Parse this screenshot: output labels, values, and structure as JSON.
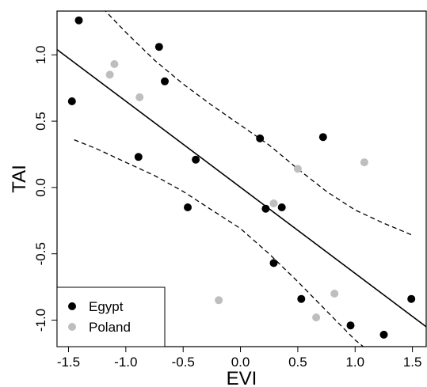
{
  "chart_data": {
    "type": "scatter",
    "title": "",
    "xlabel": "EVI",
    "ylabel": "TAI",
    "xlim": [
      -1.6,
      1.62
    ],
    "ylim": [
      -1.2,
      1.33
    ],
    "x_ticks": [
      -1.5,
      -1.0,
      -0.5,
      0.0,
      0.5,
      1.0,
      1.5
    ],
    "x_tick_labels": [
      "-1.5",
      "-1.0",
      "-0.5",
      "0.0",
      "0.5",
      "1.0",
      "1.5"
    ],
    "y_ticks": [
      -1.0,
      -0.5,
      0.0,
      0.5,
      1.0
    ],
    "y_tick_labels": [
      "-1.0",
      "-0.5",
      "0.0",
      "0.5",
      "1.0"
    ],
    "grid": false,
    "legend_position": "bottom-left",
    "series": [
      {
        "name": "Egypt",
        "color": "#000000",
        "points": [
          [
            -1.41,
            1.26
          ],
          [
            -1.47,
            0.65
          ],
          [
            -0.71,
            1.06
          ],
          [
            -0.66,
            0.8
          ],
          [
            -0.89,
            0.23
          ],
          [
            -0.39,
            0.21
          ],
          [
            -0.46,
            -0.15
          ],
          [
            0.17,
            0.37
          ],
          [
            0.22,
            -0.16
          ],
          [
            0.36,
            -0.15
          ],
          [
            0.29,
            -0.57
          ],
          [
            0.72,
            0.38
          ],
          [
            0.53,
            -0.84
          ],
          [
            0.96,
            -1.04
          ],
          [
            1.25,
            -1.11
          ],
          [
            1.49,
            -0.84
          ]
        ]
      },
      {
        "name": "Poland",
        "color": "#bebebe",
        "points": [
          [
            -1.14,
            0.85
          ],
          [
            -1.1,
            0.93
          ],
          [
            -0.88,
            0.68
          ],
          [
            -0.19,
            -0.85
          ],
          [
            0.29,
            -0.12
          ],
          [
            0.5,
            0.14
          ],
          [
            0.82,
            -0.8
          ],
          [
            0.66,
            -0.98
          ],
          [
            1.08,
            0.19
          ]
        ]
      }
    ],
    "fit_line": {
      "style": "solid",
      "points": [
        [
          -1.6,
          1.04
        ],
        [
          1.62,
          -1.05
        ]
      ]
    },
    "confidence_band": {
      "style": "dashed",
      "upper": [
        [
          -1.2,
          1.35
        ],
        [
          -1.0,
          1.17
        ],
        [
          -0.75,
          0.96
        ],
        [
          -0.5,
          0.78
        ],
        [
          -0.25,
          0.62
        ],
        [
          0.0,
          0.47
        ],
        [
          0.25,
          0.32
        ],
        [
          0.5,
          0.14
        ],
        [
          0.75,
          -0.03
        ],
        [
          1.0,
          -0.17
        ],
        [
          1.25,
          -0.27
        ],
        [
          1.5,
          -0.36
        ]
      ],
      "lower": [
        [
          -1.45,
          0.36
        ],
        [
          -1.25,
          0.29
        ],
        [
          -1.0,
          0.19
        ],
        [
          -0.75,
          0.09
        ],
        [
          -0.5,
          -0.03
        ],
        [
          -0.25,
          -0.17
        ],
        [
          0.0,
          -0.31
        ],
        [
          0.25,
          -0.5
        ],
        [
          0.5,
          -0.71
        ],
        [
          0.75,
          -0.93
        ],
        [
          1.0,
          -1.15
        ],
        [
          1.1,
          -1.22
        ]
      ]
    }
  }
}
